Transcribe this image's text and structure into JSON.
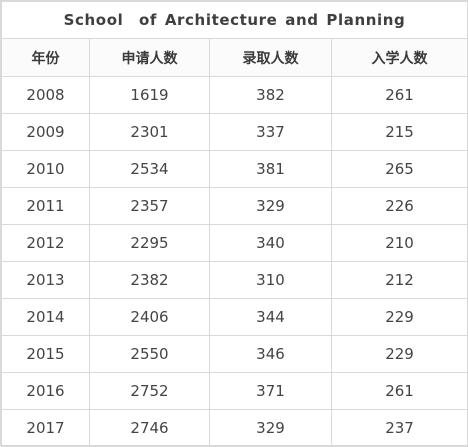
{
  "table": {
    "title": "School  of Architecture and Planning",
    "headers": [
      "年份",
      "申请人数",
      "录取人数",
      "入学人数"
    ],
    "rows": [
      [
        "2008",
        "1619",
        "382",
        "261"
      ],
      [
        "2009",
        "2301",
        "337",
        "215"
      ],
      [
        "2010",
        "2534",
        "381",
        "265"
      ],
      [
        "2011",
        "2357",
        "329",
        "226"
      ],
      [
        "2012",
        "2295",
        "340",
        "210"
      ],
      [
        "2013",
        "2382",
        "310",
        "212"
      ],
      [
        "2014",
        "2406",
        "344",
        "229"
      ],
      [
        "2015",
        "2550",
        "346",
        "229"
      ],
      [
        "2016",
        "2752",
        "371",
        "261"
      ],
      [
        "2017",
        "2746",
        "329",
        "237"
      ]
    ]
  }
}
